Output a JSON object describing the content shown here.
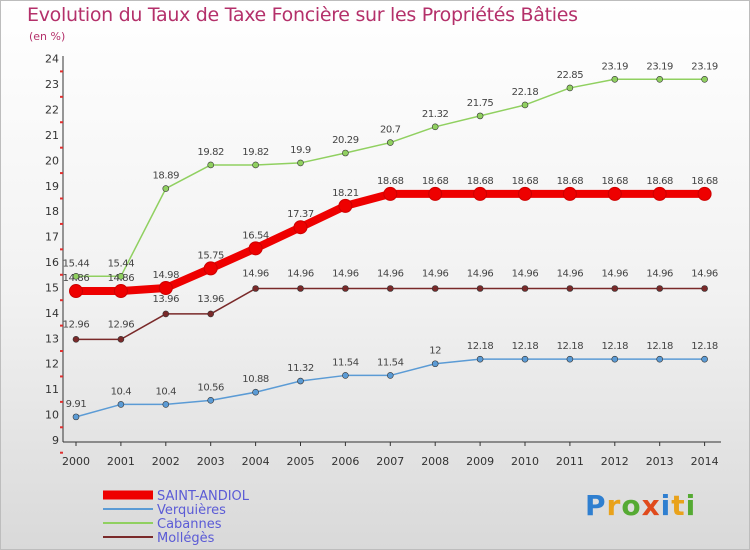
{
  "title": "Evolution du Taux de Taxe Foncière sur les Propriétés Bâties",
  "unit_label": "(en %)",
  "logo": {
    "text": "Proxiti",
    "letters": [
      "P",
      "r",
      "o",
      "x",
      "i",
      "t",
      "i"
    ],
    "colors": [
      "#2f7fd0",
      "#e9a21b",
      "#55aa33",
      "#e04a1c",
      "#2f7fd0",
      "#e9a21b",
      "#55aa33"
    ]
  },
  "chart_data": {
    "type": "line",
    "x": [
      "2000",
      "2001",
      "2002",
      "2003",
      "2004",
      "2005",
      "2006",
      "2007",
      "2008",
      "2009",
      "2010",
      "2011",
      "2012",
      "2013",
      "2014"
    ],
    "ylim": [
      9,
      24
    ],
    "yticks": [
      9,
      10,
      11,
      12,
      13,
      14,
      15,
      16,
      17,
      18,
      19,
      20,
      21,
      22,
      23,
      24
    ],
    "grid": false,
    "legend_position": "bottom-left",
    "series": [
      {
        "name": "SAINT-ANDIOL",
        "color": "#ee0000",
        "values": [
          14.86,
          14.86,
          14.98,
          15.75,
          16.54,
          17.37,
          18.21,
          18.68,
          18.68,
          18.68,
          18.68,
          18.68,
          18.68,
          18.68,
          18.68
        ],
        "labels": [
          "14.86",
          "14.86",
          "14.98",
          "15.75",
          "16.54",
          "17.37",
          "18.21",
          "18.68",
          "18.68",
          "18.68",
          "18.68",
          "18.68",
          "18.68",
          "18.68",
          "18.68"
        ]
      },
      {
        "name": "Verquières",
        "color": "#5b9bd5",
        "values": [
          9.91,
          10.4,
          10.4,
          10.56,
          10.88,
          11.32,
          11.54,
          11.54,
          12,
          12.18,
          12.18,
          12.18,
          12.18,
          12.18,
          12.18
        ],
        "labels": [
          "9.91",
          "10.4",
          "10.4",
          "10.56",
          "10.88",
          "11.32",
          "11.54",
          "11.54",
          "12",
          "12.18",
          "12.18",
          "12.18",
          "12.18",
          "12.18",
          "12.18"
        ]
      },
      {
        "name": "Cabannes",
        "color": "#90d060",
        "values": [
          15.44,
          15.44,
          18.89,
          19.82,
          19.82,
          19.9,
          20.29,
          20.7,
          21.32,
          21.75,
          22.18,
          22.85,
          23.19,
          23.19,
          23.19
        ],
        "labels": [
          "15.44",
          "15.44",
          "18.89",
          "19.82",
          "19.82",
          "19.9",
          "20.29",
          "20.7",
          "21.32",
          "21.75",
          "22.18",
          "22.85",
          "23.19",
          "23.19",
          "23.19"
        ]
      },
      {
        "name": "Mollégès",
        "color": "#7a2a2a",
        "values": [
          12.96,
          12.96,
          13.96,
          13.96,
          14.96,
          14.96,
          14.96,
          14.96,
          14.96,
          14.96,
          14.96,
          14.96,
          14.96,
          14.96,
          14.96
        ],
        "labels": [
          "12.96",
          "12.96",
          "13.96",
          "13.96",
          "14.96",
          "14.96",
          "14.96",
          "14.96",
          "14.96",
          "14.96",
          "14.96",
          "14.96",
          "14.96",
          "14.96",
          "14.96"
        ]
      }
    ]
  }
}
